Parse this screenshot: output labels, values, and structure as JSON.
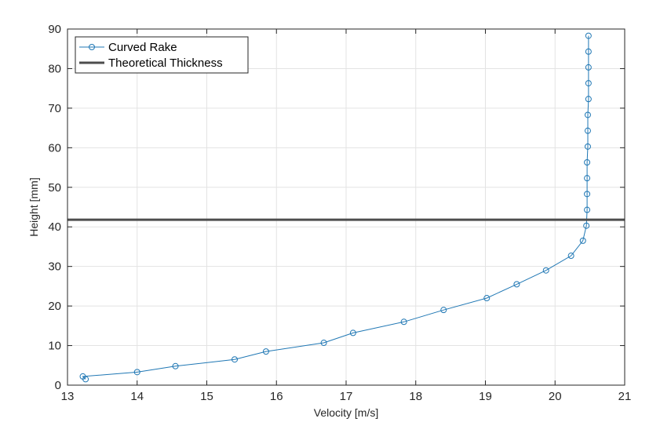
{
  "chart_data": {
    "type": "line",
    "xlabel": "Velocity [m/s]",
    "ylabel": "Height [mm]",
    "xlim": [
      13,
      21
    ],
    "ylim": [
      0,
      90
    ],
    "xticks": [
      13,
      14,
      15,
      16,
      17,
      18,
      19,
      20,
      21
    ],
    "yticks": [
      0,
      10,
      20,
      30,
      40,
      50,
      60,
      70,
      80,
      90
    ],
    "grid": true,
    "legend_position": "top-left",
    "series": [
      {
        "name": "Curved Rake",
        "color": "#1f77b4",
        "marker": "circle",
        "x": [
          13.26,
          13.22,
          14.0,
          14.55,
          15.4,
          15.85,
          16.68,
          17.1,
          17.83,
          18.4,
          19.02,
          19.45,
          19.87,
          20.23,
          20.4,
          20.45,
          20.46,
          20.46,
          20.46,
          20.46,
          20.47,
          20.47,
          20.47,
          20.48,
          20.48,
          20.48
        ],
        "y": [
          1.5,
          2.2,
          3.3,
          4.8,
          6.5,
          8.5,
          10.7,
          13.2,
          16.0,
          19.0,
          22.0,
          25.5,
          29.0,
          32.7,
          36.5,
          40.3,
          44.3,
          48.3,
          52.3,
          56.3,
          60.3,
          64.3,
          68.3,
          72.3,
          76.3,
          80.3
        ]
      },
      {
        "name": "Theoretical Thickness",
        "color": "#4d4d4d",
        "y_constant": 41.8
      }
    ]
  },
  "extra_points": {
    "x": [
      20.48,
      20.48
    ],
    "y": [
      84.3,
      88.3
    ]
  }
}
